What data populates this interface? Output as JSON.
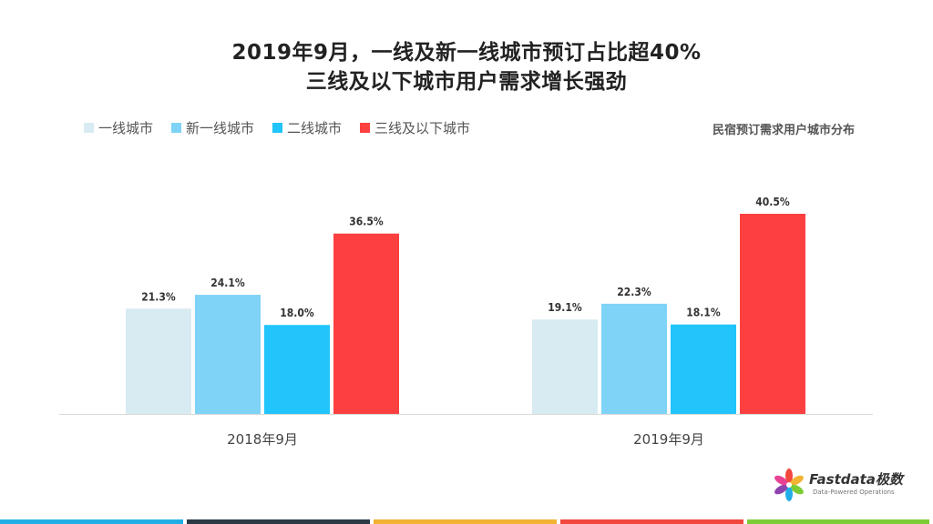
{
  "title_line1": "2019年9月，一线及新一线城市预订占比超40%",
  "title_line2": "三线及以下城市用户需求增长强劲",
  "legend": [
    {
      "label": "一线城市",
      "color": "#d8ebf2"
    },
    {
      "label": "新一线城市",
      "color": "#7fd3f7"
    },
    {
      "label": "二线城市",
      "color": "#21c4fb"
    },
    {
      "label": "三线及以下城市",
      "color": "#fc4040"
    }
  ],
  "subtitle": "民宿预订需求用户城市分布",
  "logo": {
    "name": "Fastdata极数",
    "tagline": "Data-Powered Operations"
  },
  "footer_colors": [
    "#21aee6",
    "#2b3a45",
    "#f2b233",
    "#f2473d",
    "#7ccd35"
  ],
  "chart_data": {
    "type": "bar",
    "categories": [
      "2018年9月",
      "2019年9月"
    ],
    "series": [
      {
        "name": "一线城市",
        "values": [
          21.3,
          19.1
        ],
        "labels": [
          "21.3%",
          "19.1%"
        ],
        "color": "#d8ebf2"
      },
      {
        "name": "新一线城市",
        "values": [
          24.1,
          22.3
        ],
        "labels": [
          "24.1%",
          "22.3%"
        ],
        "color": "#7fd3f7"
      },
      {
        "name": "二线城市",
        "values": [
          18.0,
          18.1
        ],
        "labels": [
          "18.0%",
          "18.1%"
        ],
        "color": "#21c4fb"
      },
      {
        "name": "三线及以下城市",
        "values": [
          36.5,
          40.5
        ],
        "labels": [
          "36.5%",
          "40.5%"
        ],
        "color": "#fc4040"
      }
    ],
    "ylim": [
      0,
      45
    ],
    "grid": false,
    "legend_position": "top-left",
    "data_labels": true
  }
}
